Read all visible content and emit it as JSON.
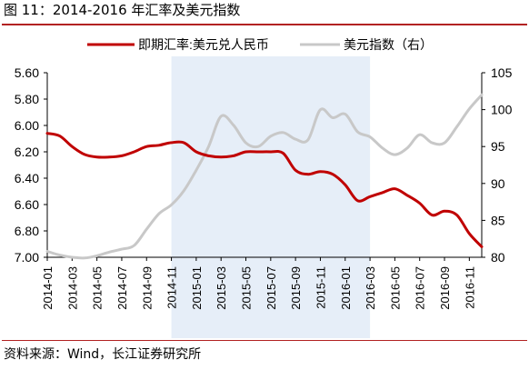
{
  "figure": {
    "title": "图 11：2014-2016 年汇率及美元指数",
    "source": "资料来源：Wind，长江证券研究所"
  },
  "chart_data": {
    "type": "line",
    "legend_position": "top",
    "grid": false,
    "x_tick_labels": [
      "2014-01",
      "2014-03",
      "2014-05",
      "2014-07",
      "2014-09",
      "2014-11",
      "2015-01",
      "2015-03",
      "2015-05",
      "2015-07",
      "2015-09",
      "2015-11",
      "2016-01",
      "2016-03",
      "2016-05",
      "2016-07",
      "2016-09",
      "2016-11"
    ],
    "xlim": [
      0,
      35
    ],
    "shaded_region": {
      "start": 10,
      "end": 26,
      "color": "#e6eef8"
    },
    "left_axis": {
      "ticks": [
        "5.60",
        "5.80",
        "6.00",
        "6.20",
        "6.40",
        "6.60",
        "6.80",
        "7.00"
      ],
      "ylim": [
        5.6,
        7.0
      ],
      "inverted": true
    },
    "right_axis": {
      "ticks": [
        "80",
        "85",
        "90",
        "95",
        "100",
        "105"
      ],
      "ylim": [
        80,
        105
      ]
    },
    "series": [
      {
        "name": "即期汇率:美元兑人民币",
        "axis": "left",
        "color": "#c00000",
        "x": [
          0,
          1,
          2,
          3,
          4,
          5,
          6,
          7,
          8,
          9,
          10,
          11,
          12,
          13,
          14,
          15,
          16,
          17,
          18,
          19,
          20,
          21,
          22,
          23,
          24,
          25,
          26,
          27,
          28,
          29,
          30,
          31,
          32,
          33,
          34,
          35
        ],
        "values": [
          6.06,
          6.08,
          6.16,
          6.22,
          6.24,
          6.24,
          6.23,
          6.2,
          6.16,
          6.15,
          6.13,
          6.13,
          6.2,
          6.23,
          6.24,
          6.23,
          6.2,
          6.2,
          6.2,
          6.21,
          6.34,
          6.37,
          6.35,
          6.37,
          6.45,
          6.57,
          6.54,
          6.51,
          6.48,
          6.53,
          6.59,
          6.68,
          6.65,
          6.68,
          6.82,
          6.92
        ]
      },
      {
        "name": "美元指数（右）",
        "axis": "right",
        "color": "#c8c8c8",
        "x": [
          0,
          1,
          2,
          3,
          4,
          5,
          6,
          7,
          8,
          9,
          10,
          11,
          12,
          13,
          14,
          15,
          16,
          17,
          18,
          19,
          20,
          21,
          22,
          23,
          24,
          25,
          26,
          27,
          28,
          29,
          30,
          31,
          32,
          33,
          34,
          35
        ],
        "values": [
          80.8,
          80.3,
          80.0,
          79.9,
          80.2,
          80.7,
          81.1,
          81.6,
          83.8,
          85.9,
          87.1,
          89.0,
          91.8,
          95.0,
          99.1,
          97.9,
          95.5,
          95.0,
          96.4,
          96.9,
          96.0,
          95.9,
          100.0,
          98.9,
          99.4,
          97.0,
          96.3,
          94.8,
          93.9,
          94.8,
          96.6,
          95.5,
          95.5,
          97.7,
          100.1,
          102.0
        ]
      }
    ]
  }
}
